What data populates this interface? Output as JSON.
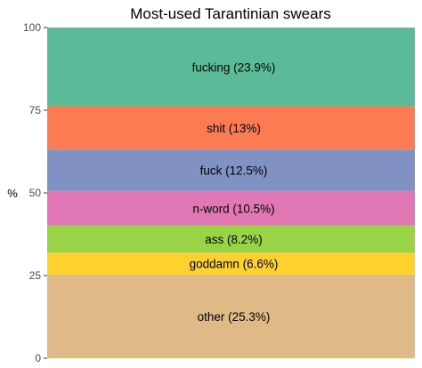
{
  "chart_data": {
    "type": "bar",
    "stacked": true,
    "title": "Most-used Tarantinian swears",
    "xlabel": "",
    "ylabel": "%",
    "ylim": [
      0,
      100
    ],
    "yticks": [
      "0",
      "25",
      "50",
      "75",
      "100"
    ],
    "grid": false,
    "legend": "none",
    "segments": [
      {
        "label": "other (25.3%)",
        "value": 25.3,
        "color": "#E0BA86"
      },
      {
        "label": "goddamn (6.6%)",
        "value": 6.6,
        "color": "#FED12F"
      },
      {
        "label": "ass (8.2%)",
        "value": 8.2,
        "color": "#98D446"
      },
      {
        "label": "n-word  (10.5%)",
        "value": 10.5,
        "color": "#E277B6"
      },
      {
        "label": "fuck (12.5%)",
        "value": 12.5,
        "color": "#8191C3"
      },
      {
        "label": "shit (13%)",
        "value": 13.0,
        "color": "#FB7B53"
      },
      {
        "label": "fucking (23.9%)",
        "value": 23.9,
        "color": "#5BBA97"
      }
    ]
  }
}
